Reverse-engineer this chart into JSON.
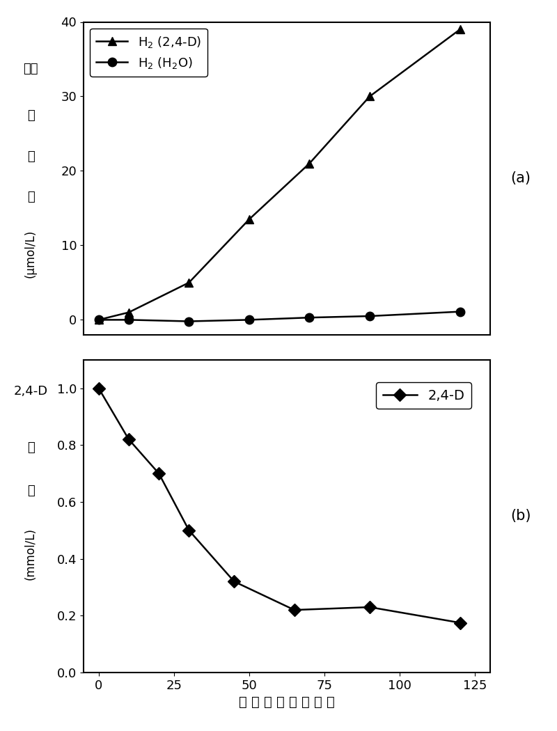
{
  "subplot_a": {
    "x": [
      0,
      10,
      30,
      50,
      70,
      90,
      120
    ],
    "y_h2_24d": [
      0,
      1.0,
      5.0,
      13.5,
      21.0,
      30.0,
      39.0
    ],
    "y_h2_h2o": [
      0,
      0.0,
      -0.2,
      0.0,
      0.3,
      0.5,
      1.1
    ],
    "ylim": [
      -2,
      40
    ],
    "yticks": [
      0,
      10,
      20,
      30,
      40
    ],
    "legend1": "H$_2$ (2,4-D)",
    "legend2": "H$_2$ (H$_2$O)"
  },
  "subplot_b": {
    "x": [
      0,
      10,
      20,
      30,
      45,
      65,
      90,
      120
    ],
    "y_24d": [
      1.0,
      0.82,
      0.7,
      0.5,
      0.32,
      0.22,
      0.23,
      0.175
    ],
    "ylim": [
      0.0,
      1.1
    ],
    "yticks": [
      0.0,
      0.2,
      0.4,
      0.6,
      0.8,
      1.0
    ],
    "legend": "2,4-D"
  },
  "xticks": [
    0,
    25,
    50,
    75,
    100,
    125
  ],
  "xlim": [
    -5,
    130
  ],
  "label_a": "(a)",
  "label_b": "(b)",
  "line_color": "#000000",
  "marker_triangle": "^",
  "marker_circle": "o",
  "marker_diamond": "D",
  "markersize": 9,
  "linewidth": 1.8,
  "tick_fontsize": 13,
  "legend_fontsize": 13,
  "ylabel_fontsize": 13,
  "xlabel_fontsize": 14
}
